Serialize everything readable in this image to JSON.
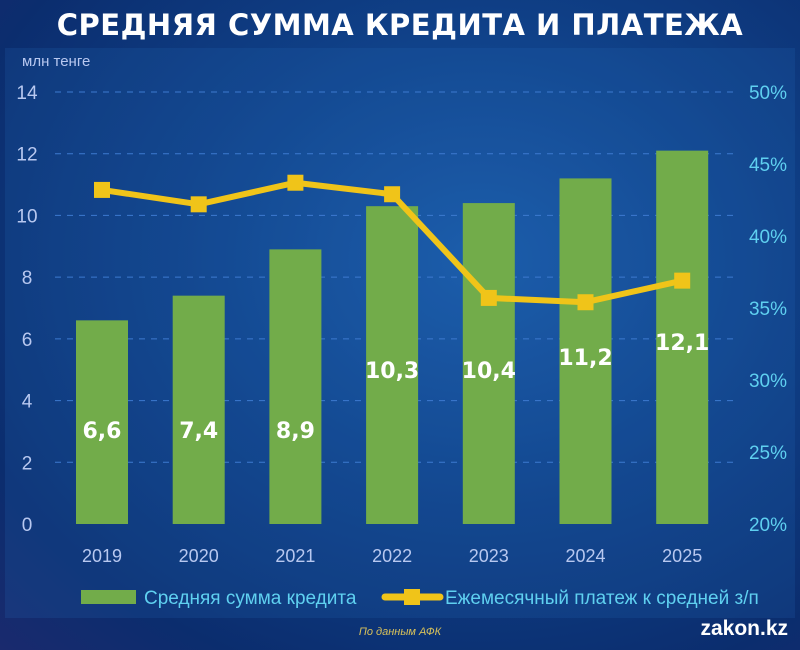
{
  "title": "СРЕДНЯЯ СУММА КРЕДИТА И ПЛАТЕЖА",
  "source": "По данным АФК",
  "logo": "zakon.kz",
  "colors": {
    "bar": "#72ac4a",
    "line": "#f0c419",
    "axis_left": "#b8c8f0",
    "axis_right": "#5fd0f0"
  },
  "chart_data": {
    "type": "bar+line",
    "ylabel": "млн тенге",
    "categories": [
      "2019",
      "2020",
      "2021",
      "2022",
      "2023",
      "2024",
      "2025"
    ],
    "ylim": [
      0,
      14
    ],
    "yticks": [
      "0",
      "2",
      "4",
      "6",
      "8",
      "10",
      "12",
      "14"
    ],
    "y2lim": [
      20,
      50
    ],
    "y2ticks": [
      "20%",
      "25%",
      "30%",
      "35%",
      "40%",
      "45%",
      "50%"
    ],
    "series": [
      {
        "name": "Средняя сумма кредита",
        "type": "bar",
        "axis": "left",
        "values": [
          6.6,
          7.4,
          8.9,
          10.3,
          10.4,
          11.2,
          12.1
        ],
        "labels": [
          "6,6",
          "7,4",
          "8,9",
          "10,3",
          "10,4",
          "11,2",
          "12,1"
        ]
      },
      {
        "name": "Ежемесячный платеж к средней з/п",
        "type": "line",
        "axis": "right",
        "values": [
          43.2,
          42.2,
          43.7,
          42.9,
          35.7,
          35.4,
          36.9
        ]
      }
    ],
    "grid": true,
    "legend": "bottom"
  }
}
